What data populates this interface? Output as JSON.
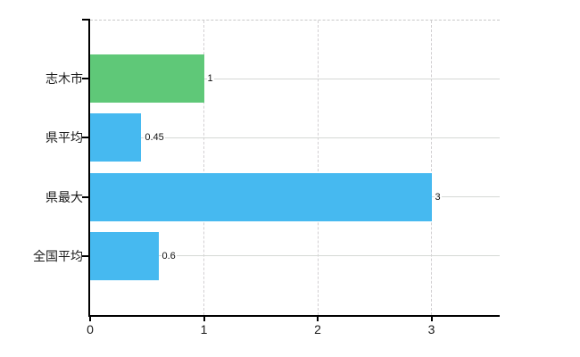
{
  "chart_data": {
    "type": "bar",
    "orientation": "horizontal",
    "title": "",
    "xlabel": "",
    "ylabel": "",
    "categories": [
      "志木市",
      "県平均",
      "県最大",
      "全国平均"
    ],
    "values": [
      1,
      0.45,
      3,
      0.6
    ],
    "value_labels": [
      "1",
      "0.45",
      "3",
      "0.6"
    ],
    "bar_colors": [
      "#5fc878",
      "#46b9f0",
      "#46b9f0",
      "#46b9f0"
    ],
    "x_ticks": [
      0,
      1,
      2,
      3
    ],
    "x_tick_labels": [
      "0",
      "1",
      "2",
      "3"
    ],
    "xlim": [
      0,
      3.6
    ],
    "grid": true,
    "legend": false,
    "colors": {
      "axis": "#000000",
      "horizontal_gridline": "#d5d8d5",
      "vertical_gridline": "#d2cfd2",
      "top_border": "#c9c9c9",
      "background": "#ffffff",
      "label_text": "#1a1a1a"
    }
  }
}
